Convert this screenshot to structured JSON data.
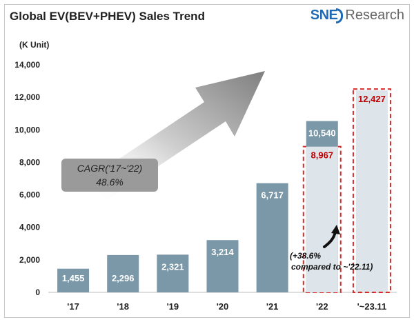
{
  "header": {
    "title": "Global EV(BEV+PHEV)  Sales Trend",
    "logo_brand": "SNE",
    "logo_suffix": "Research"
  },
  "chart_data": {
    "type": "bar",
    "title": "Global EV(BEV+PHEV)  Sales Trend",
    "unit_label": "(K Unit)",
    "categories": [
      "'17",
      "'18",
      "'19",
      "'20",
      "'21",
      "'22",
      "'~23.11"
    ],
    "series": [
      {
        "values": [
          1455,
          2296,
          2321,
          3214,
          6717,
          10540,
          12427
        ]
      }
    ],
    "value_labels": [
      "1,455",
      "2,296",
      "2,321",
      "3,214",
      "6,717",
      "10,540",
      "12,427"
    ],
    "partial_2022": {
      "value": 8967,
      "label": "8,967"
    },
    "y_ticks": [
      "0",
      "2,000",
      "4,000",
      "6,000",
      "8,000",
      "10,000",
      "12,000",
      "14,000"
    ],
    "ylim": [
      0,
      14000
    ],
    "grid": false,
    "annotations": {
      "cagr_line1": "CAGR('17~'22)",
      "cagr_line2": "48.6%",
      "growth_line1": "(+38.6%",
      "growth_line2": "compared to ~'22.11)"
    },
    "colors": {
      "bar": "#7b98a8",
      "bar_highlight": "#dde4ea",
      "dash": "#d62a2a",
      "label_red": "#c00000",
      "arrow": "#8a8a8a",
      "cagr_box": "#9a9a9a"
    }
  }
}
